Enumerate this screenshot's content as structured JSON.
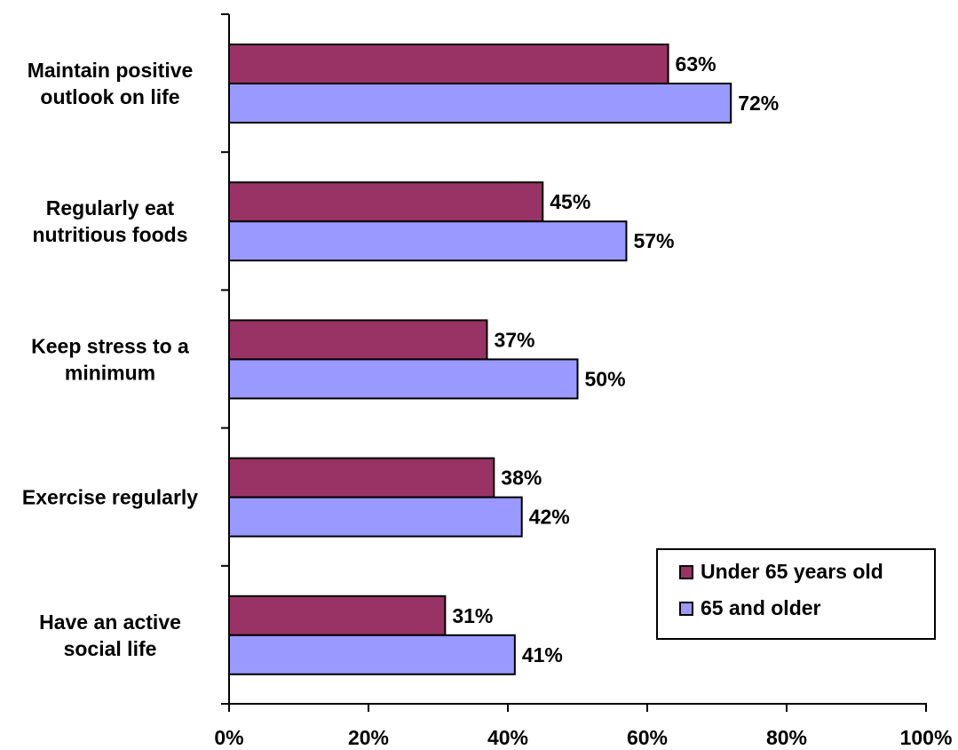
{
  "chart_data": {
    "type": "bar",
    "orientation": "horizontal",
    "categories": [
      [
        "Maintain positive",
        "outlook on life"
      ],
      [
        "Regularly eat",
        "nutritious foods"
      ],
      [
        "Keep stress to a",
        "minimum"
      ],
      [
        "Exercise regularly"
      ],
      [
        "Have an active",
        "social life"
      ]
    ],
    "series": [
      {
        "name": "Under 65 years old",
        "color": "#993366",
        "values": [
          63,
          45,
          37,
          38,
          31
        ]
      },
      {
        "name": "65 and older",
        "color": "#9999ff",
        "values": [
          72,
          57,
          50,
          42,
          41
        ]
      }
    ],
    "data_labels": [
      [
        "63%",
        "45%",
        "37%",
        "38%",
        "31%"
      ],
      [
        "72%",
        "57%",
        "50%",
        "42%",
        "41%"
      ]
    ],
    "xlim": [
      0,
      100
    ],
    "x_ticks": [
      0,
      20,
      40,
      60,
      80,
      100
    ],
    "x_tick_labels": [
      "0%",
      "20%",
      "40%",
      "60%",
      "80%",
      "100%"
    ],
    "title": "",
    "xlabel": "",
    "ylabel": "",
    "grid": false,
    "legend_position": "bottom-right"
  }
}
